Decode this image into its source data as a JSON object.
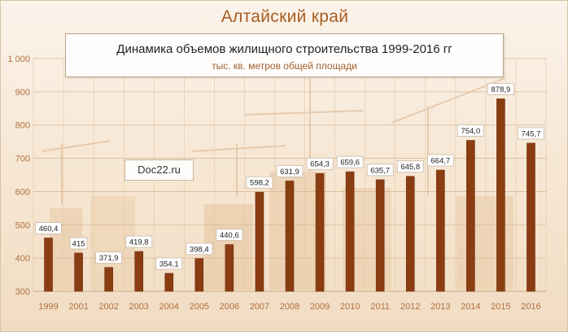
{
  "region_title": "Алтайский край",
  "watermark": "Doc22.ru",
  "colors": {
    "bar": "#8b3d12",
    "bar_edge": "#6e2e0c",
    "tick_text": "#b07040",
    "title": "#a75d22"
  },
  "chart_data": {
    "type": "bar",
    "title": "Динамика объемов жилищного строительства 1999-2016 гг",
    "subtitle": "тыс. кв. метров общей площади",
    "categories": [
      "1999",
      "2001",
      "2002",
      "2003",
      "2004",
      "2005",
      "2006",
      "2007",
      "2008",
      "2009",
      "2010",
      "2011",
      "2012",
      "2013",
      "2014",
      "2015",
      "2016"
    ],
    "values": [
      460.4,
      415,
      371.9,
      419.8,
      354.1,
      398.4,
      440.6,
      598.2,
      631.9,
      654.3,
      659.6,
      635.7,
      645.8,
      664.7,
      754.0,
      878.9,
      745.7
    ],
    "value_labels": [
      "460,4",
      "415",
      "371,9",
      "419,8",
      "354,1",
      "398,4",
      "440,6",
      "598,2",
      "631,9",
      "654,3",
      "659,6",
      "635,7",
      "645,8",
      "664,7",
      "754,0",
      "878,9",
      "745,7"
    ],
    "ylim": [
      300,
      1000
    ],
    "yticks": [
      300,
      400,
      500,
      600,
      700,
      800,
      900,
      1000
    ],
    "ytick_labels": [
      "300",
      "400",
      "500",
      "600",
      "700",
      "800",
      "900",
      "1 000"
    ],
    "xlabel": "",
    "ylabel": "",
    "grid": true,
    "legend": "none"
  }
}
